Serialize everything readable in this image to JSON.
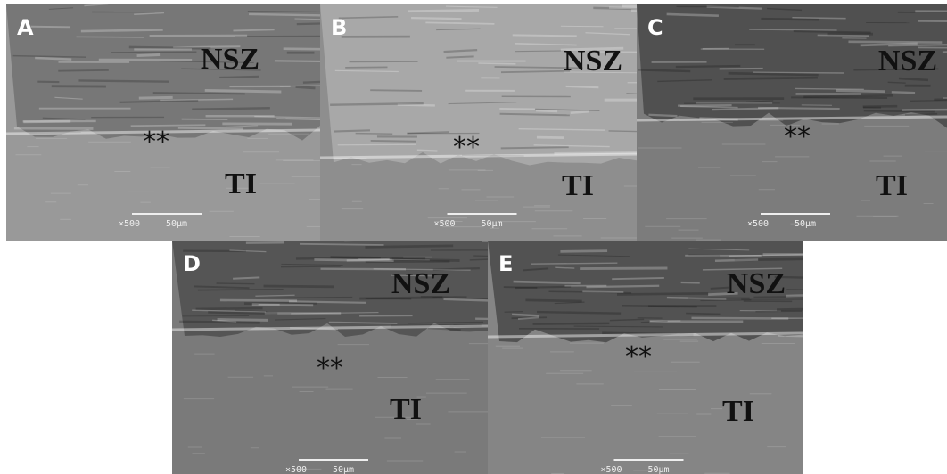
{
  "panels": [
    {
      "label": "A",
      "top_label": "NSZ",
      "bottom_label": "TI",
      "marker": "**",
      "magnification": "×500",
      "scale": "50μm"
    },
    {
      "label": "B",
      "top_label": "NSZ",
      "bottom_label": "TI",
      "marker": "**",
      "magnification": "×500",
      "scale": "50μm"
    },
    {
      "label": "C",
      "top_label": "NSZ",
      "bottom_label": "TI",
      "marker": "**",
      "magnification": "×500",
      "scale": "50μm"
    },
    {
      "label": "D",
      "top_label": "NSZ",
      "bottom_label": "TI",
      "marker": "**",
      "magnification": "×500",
      "scale": "50μm"
    },
    {
      "label": "E",
      "top_label": "NSZ",
      "bottom_label": "TI",
      "marker": "**",
      "magnification": "×500",
      "scale": "50μm"
    }
  ]
}
